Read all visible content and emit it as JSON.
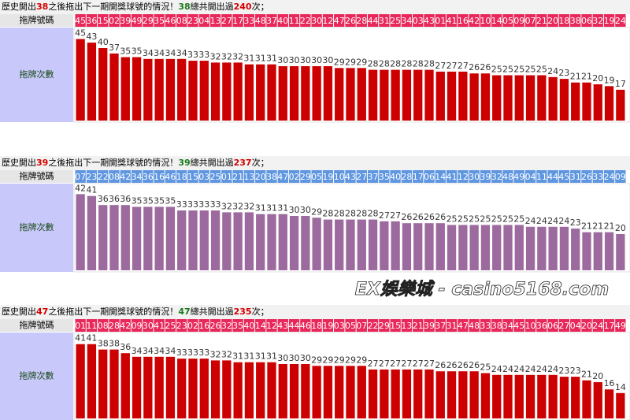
{
  "watermark": "EX娛樂城 - casino5168.com",
  "chart_data": [
    {
      "type": "bar",
      "title": {
        "lead": "歷史開出",
        "ball": 38,
        "text": "之後拖出下一期開獎球號的情況！",
        "ball_again": 38,
        "total_text": "總共開出過",
        "total": 240,
        "end": "次；"
      },
      "row_labels": [
        "拖牌號碼",
        "拖牌次數"
      ],
      "categories": [
        "45",
        "36",
        "15",
        "02",
        "39",
        "49",
        "29",
        "35",
        "46",
        "08",
        "23",
        "04",
        "13",
        "27",
        "17",
        "33",
        "48",
        "37",
        "40",
        "11",
        "22",
        "30",
        "12",
        "47",
        "26",
        "28",
        "44",
        "31",
        "25",
        "34",
        "03",
        "43",
        "01",
        "41",
        "16",
        "42",
        "10",
        "14",
        "05",
        "09",
        "07",
        "21",
        "20",
        "18",
        "38",
        "06",
        "32",
        "19",
        "24"
      ],
      "values": [
        45,
        43,
        40,
        37,
        35,
        35,
        34,
        34,
        34,
        34,
        33,
        33,
        32,
        32,
        32,
        31,
        31,
        31,
        30,
        30,
        30,
        30,
        30,
        29,
        29,
        29,
        28,
        28,
        28,
        28,
        28,
        28,
        27,
        27,
        27,
        26,
        26,
        25,
        25,
        25,
        25,
        25,
        24,
        23,
        21,
        21,
        20,
        19,
        17
      ],
      "color": "#cc0000",
      "category_color": "#e8285a"
    },
    {
      "type": "bar",
      "title": {
        "lead": "歷史開出",
        "ball": 39,
        "text": "之後拖出下一期開獎球號的情況！",
        "ball_again": 39,
        "total_text": "總共開出過",
        "total": 237,
        "end": "次；"
      },
      "row_labels": [
        "拖牌號碼",
        "拖牌次數"
      ],
      "categories": [
        "07",
        "23",
        "22",
        "08",
        "42",
        "34",
        "36",
        "16",
        "46",
        "18",
        "15",
        "03",
        "25",
        "01",
        "21",
        "13",
        "20",
        "38",
        "47",
        "02",
        "29",
        "05",
        "19",
        "10",
        "43",
        "27",
        "37",
        "35",
        "40",
        "28",
        "17",
        "06",
        "14",
        "41",
        "12",
        "30",
        "39",
        "32",
        "48",
        "49",
        "04",
        "11",
        "44",
        "45",
        "31",
        "26",
        "33",
        "24",
        "09"
      ],
      "values": [
        42,
        41,
        36,
        36,
        36,
        35,
        35,
        35,
        35,
        33,
        33,
        33,
        33,
        32,
        32,
        32,
        31,
        31,
        31,
        30,
        30,
        29,
        28,
        28,
        28,
        28,
        28,
        27,
        27,
        26,
        26,
        26,
        26,
        25,
        25,
        25,
        25,
        25,
        25,
        25,
        24,
        24,
        24,
        24,
        23,
        21,
        21,
        21,
        20
      ],
      "color": "#9c6a9e",
      "category_color": "#5f96e0"
    },
    {
      "type": "bar",
      "title": {
        "lead": "歷史開出",
        "ball": 47,
        "text": "之後拖出下一期開獎球號的情況！",
        "ball_again": 47,
        "total_text": "總共開出過",
        "total": 235,
        "end": "次；"
      },
      "row_labels": [
        "拖牌號碼",
        "拖牌次數"
      ],
      "categories": [
        "01",
        "11",
        "08",
        "28",
        "42",
        "09",
        "30",
        "41",
        "25",
        "23",
        "02",
        "16",
        "26",
        "32",
        "35",
        "40",
        "14",
        "12",
        "43",
        "44",
        "46",
        "18",
        "19",
        "03",
        "05",
        "07",
        "22",
        "29",
        "15",
        "13",
        "21",
        "39",
        "37",
        "31",
        "47",
        "48",
        "33",
        "38",
        "34",
        "45",
        "10",
        "36",
        "06",
        "27",
        "04",
        "20",
        "24",
        "17",
        "49"
      ],
      "values": [
        41,
        41,
        38,
        38,
        36,
        34,
        34,
        34,
        34,
        33,
        33,
        33,
        32,
        32,
        31,
        31,
        31,
        31,
        30,
        30,
        30,
        29,
        29,
        29,
        29,
        29,
        27,
        27,
        27,
        27,
        27,
        27,
        26,
        26,
        26,
        26,
        25,
        24,
        24,
        24,
        24,
        24,
        24,
        23,
        23,
        21,
        20,
        16,
        14
      ],
      "color": "#cc0000",
      "category_color": "#e8285a"
    }
  ]
}
